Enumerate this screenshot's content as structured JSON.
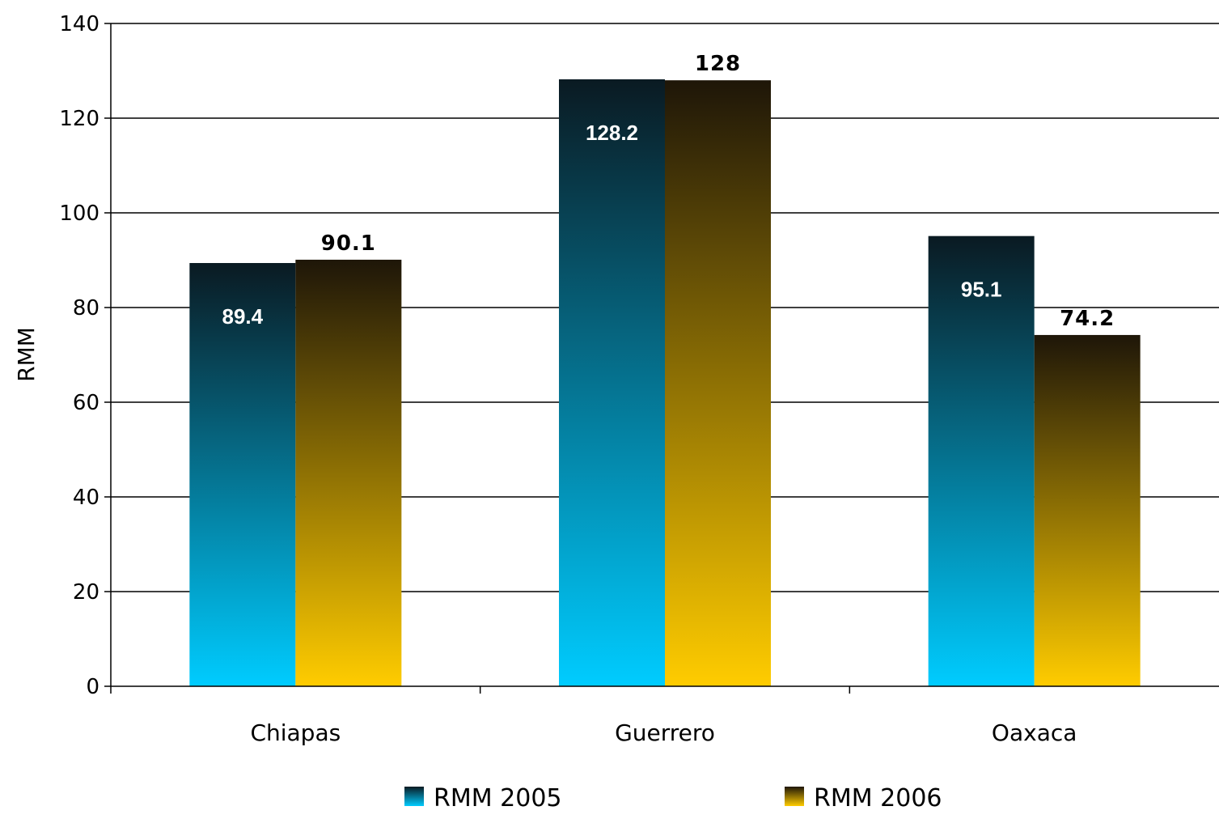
{
  "chart_data": {
    "type": "bar",
    "categories": [
      "Chiapas",
      "Guerrero",
      "Oaxaca"
    ],
    "series": [
      {
        "name": "RMM 2005",
        "values": [
          89.4,
          128.2,
          95.1
        ],
        "labels": [
          "89.4",
          "128.2",
          "95.1"
        ]
      },
      {
        "name": "RMM 2006",
        "values": [
          90.1,
          128,
          74.2
        ],
        "labels": [
          "90.1",
          "128",
          "74.2"
        ]
      }
    ],
    "ylabel": "RMM",
    "ylim": [
      0,
      140
    ],
    "yticks": [
      "0",
      "20",
      "40",
      "60",
      "80",
      "100",
      "120",
      "140"
    ],
    "grid": true,
    "legend_position": "bottom",
    "colors": {
      "2005_top": "#0a1a22",
      "2005_bottom": "#00ccff",
      "2006_top": "#1e1608",
      "2006_bottom": "#ffcc00"
    }
  }
}
